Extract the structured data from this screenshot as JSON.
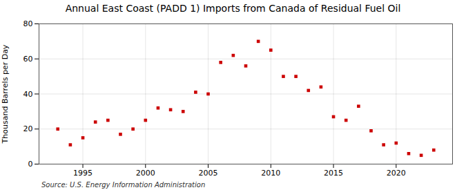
{
  "chart_data": {
    "type": "scatter",
    "title": "Annual East Coast (PADD 1) Imports from Canada of Residual Fuel Oil",
    "ylabel": "Thousand Barrels per Day",
    "source": "Source: U.S. Energy Information Administration",
    "x": [
      1993,
      1994,
      1995,
      1996,
      1997,
      1998,
      1999,
      2000,
      2001,
      2002,
      2003,
      2004,
      2005,
      2006,
      2007,
      2008,
      2009,
      2010,
      2011,
      2012,
      2013,
      2014,
      2015,
      2016,
      2017,
      2018,
      2019,
      2020,
      2021,
      2022,
      2023
    ],
    "values": [
      20,
      11,
      15,
      24,
      25,
      17,
      20,
      25,
      32,
      31,
      30,
      41,
      40,
      58,
      62,
      56,
      70,
      65,
      50,
      50,
      42,
      44,
      27,
      25,
      33,
      19,
      11,
      12,
      6,
      5,
      8
    ],
    "color": "#cc0000",
    "marker": "square",
    "xlim": [
      1991.5,
      2024.5
    ],
    "xticks": [
      1995,
      2000,
      2005,
      2010,
      2015,
      2020
    ],
    "ylim": [
      0,
      80
    ],
    "yticks": [
      0,
      20,
      40,
      60,
      80
    ],
    "grid": true
  }
}
